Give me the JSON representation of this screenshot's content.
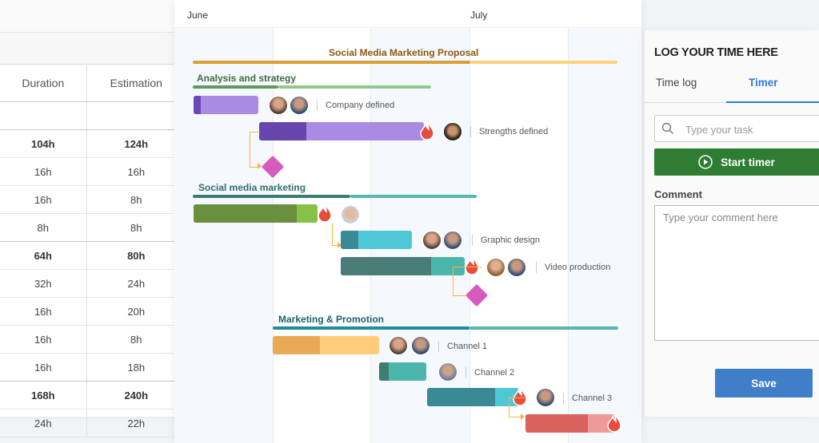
{
  "table": {
    "headers": {
      "duration": "Duration",
      "estimation": "Estimation"
    },
    "rows": [
      {
        "duration": "",
        "estimation": "",
        "bold": false,
        "empty": true
      },
      {
        "duration": "104h",
        "estimation": "124h",
        "bold": true
      },
      {
        "duration": "16h",
        "estimation": "16h",
        "bold": false
      },
      {
        "duration": "16h",
        "estimation": "8h",
        "bold": false
      },
      {
        "duration": "8h",
        "estimation": "8h",
        "bold": false
      },
      {
        "duration": "64h",
        "estimation": "80h",
        "bold": true
      },
      {
        "duration": "32h",
        "estimation": "24h",
        "bold": false
      },
      {
        "duration": "16h",
        "estimation": "20h",
        "bold": false
      },
      {
        "duration": "16h",
        "estimation": "8h",
        "bold": false
      },
      {
        "duration": "16h",
        "estimation": "18h",
        "bold": false
      },
      {
        "duration": "168h",
        "estimation": "240h",
        "bold": true
      },
      {
        "duration": "24h",
        "estimation": "22h",
        "bold": false
      }
    ]
  },
  "gantt": {
    "months": [
      "June",
      "July"
    ],
    "project_title": "Social Media Marketing Proposal",
    "groups": [
      {
        "title": "Analysis and strategy",
        "color": "#3b6e3b",
        "tasks": [
          {
            "label": "Company defined"
          },
          {
            "label": "Strengths defined"
          }
        ]
      },
      {
        "title": "Social media marketing",
        "color": "#2d6e72",
        "tasks": [
          {
            "label": ""
          },
          {
            "label": "Graphic design"
          },
          {
            "label": "Video production"
          }
        ]
      },
      {
        "title": "Marketing & Promotion",
        "color": "#1f5f6e",
        "tasks": [
          {
            "label": "Channel 1"
          },
          {
            "label": "Channel 2"
          },
          {
            "label": "Channel 3"
          },
          {
            "label": ""
          }
        ]
      }
    ]
  },
  "timer_panel": {
    "title": "LOG YOUR TIME HERE",
    "tabs": {
      "time_log": "Time log",
      "timer": "Timer"
    },
    "active_tab": "Timer",
    "task_placeholder": "Type your task",
    "start_button": "Start timer",
    "comment_label": "Comment",
    "comment_placeholder": "Type your comment here",
    "save_button": "Save"
  },
  "colors": {
    "accent_blue": "#2d7bd6",
    "start_green": "#2e7d32",
    "save_blue": "#3f7ec9",
    "milestone": "#d65bbd",
    "connector": "#f6b53f"
  }
}
